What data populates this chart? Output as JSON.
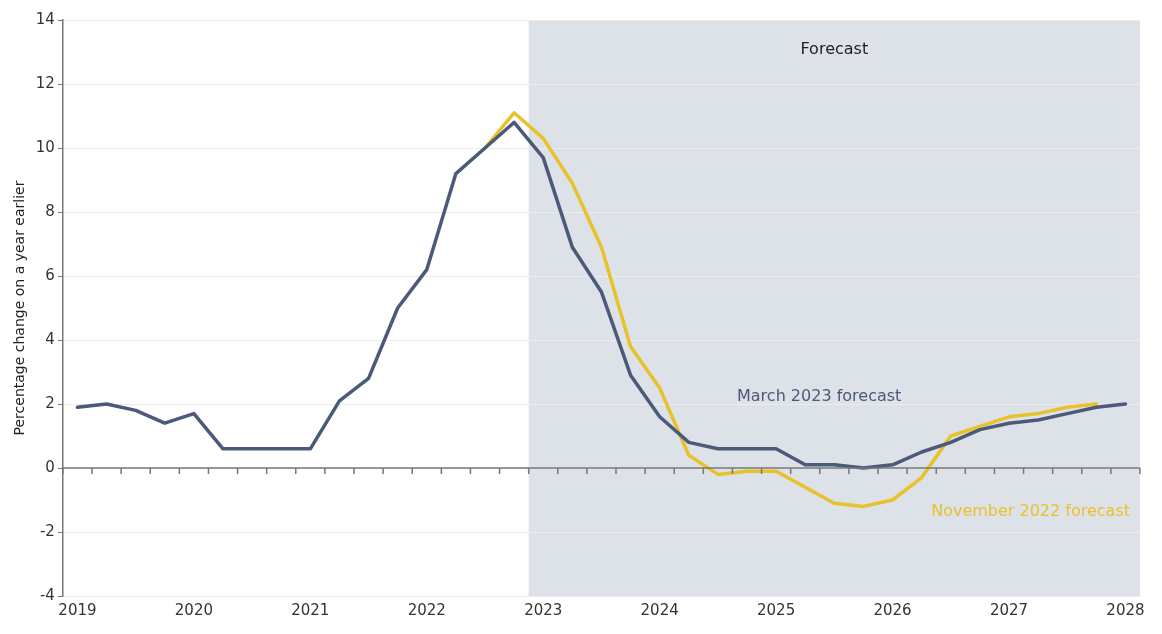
{
  "chart_data": {
    "type": "line",
    "ylabel": "Percentage change on a year earlier",
    "x": [
      2019,
      2019.25,
      2019.5,
      2019.75,
      2020,
      2020.25,
      2020.5,
      2020.75,
      2021,
      2021.25,
      2021.5,
      2021.75,
      2022,
      2022.25,
      2022.5,
      2022.75,
      2023,
      2023.25,
      2023.5,
      2023.75,
      2024,
      2024.25,
      2024.5,
      2024.75,
      2025,
      2025.25,
      2025.5,
      2025.75,
      2026,
      2026.25,
      2026.5,
      2026.75,
      2027,
      2027.25,
      2027.5,
      2027.75,
      2028
    ],
    "series": [
      {
        "name": "November 2022 forecast",
        "color": "#e8c22a",
        "values": [
          null,
          null,
          null,
          null,
          null,
          null,
          null,
          null,
          null,
          null,
          null,
          null,
          null,
          null,
          10.0,
          11.1,
          10.3,
          8.9,
          6.9,
          3.8,
          2.5,
          0.4,
          -0.2,
          -0.1,
          -0.1,
          -0.6,
          -1.1,
          -1.2,
          -1.0,
          -0.3,
          1.0,
          1.3,
          1.6,
          1.7,
          1.9,
          2.0,
          null
        ]
      },
      {
        "name": "March 2023 forecast",
        "color": "#4a5a78",
        "values": [
          1.9,
          2.0,
          1.8,
          1.4,
          1.7,
          0.6,
          0.6,
          0.6,
          0.6,
          2.1,
          2.8,
          5.0,
          6.2,
          9.2,
          10.0,
          10.8,
          9.7,
          6.9,
          5.5,
          2.9,
          1.6,
          0.8,
          0.6,
          0.6,
          0.6,
          0.1,
          0.1,
          0.0,
          0.1,
          0.5,
          0.8,
          1.2,
          1.4,
          1.5,
          1.7,
          1.9,
          2.0
        ]
      }
    ],
    "xlim": [
      2018.875,
      2028.125
    ],
    "xticks": [
      2019,
      2020,
      2021,
      2022,
      2023,
      2024,
      2025,
      2026,
      2027,
      2028,
      {
        "value": 2018.875,
        "label": null
      },
      {
        "value": 2019.125,
        "label": null
      },
      {
        "value": 2019.375,
        "label": null
      },
      {
        "value": 2019.625,
        "label": null
      },
      {
        "value": 2019.875,
        "label": null
      },
      {
        "value": 2020.125,
        "label": null
      },
      {
        "value": 2020.375,
        "label": null
      },
      {
        "value": 2020.625,
        "label": null
      },
      {
        "value": 2020.875,
        "label": null
      },
      {
        "value": 2021.125,
        "label": null
      },
      {
        "value": 2021.375,
        "label": null
      },
      {
        "value": 2021.625,
        "label": null
      },
      {
        "value": 2021.875,
        "label": null
      },
      {
        "value": 2022.125,
        "label": null
      },
      {
        "value": 2022.375,
        "label": null
      },
      {
        "value": 2022.625,
        "label": null
      },
      {
        "value": 2022.875,
        "label": null
      },
      {
        "value": 2023.125,
        "label": null
      },
      {
        "value": 2023.375,
        "label": null
      },
      {
        "value": 2023.625,
        "label": null
      },
      {
        "value": 2023.875,
        "label": null
      },
      {
        "value": 2024.125,
        "label": null
      },
      {
        "value": 2024.375,
        "label": null
      },
      {
        "value": 2024.625,
        "label": null
      },
      {
        "value": 2024.875,
        "label": null
      },
      {
        "value": 2025.125,
        "label": null
      },
      {
        "value": 2025.375,
        "label": null
      },
      {
        "value": 2025.625,
        "label": null
      },
      {
        "value": 2025.875,
        "label": null
      },
      {
        "value": 2026.125,
        "label": null
      },
      {
        "value": 2026.375,
        "label": null
      },
      {
        "value": 2026.625,
        "label": null
      },
      {
        "value": 2026.875,
        "label": null
      },
      {
        "value": 2027.125,
        "label": null
      },
      {
        "value": 2027.375,
        "label": null
      },
      {
        "value": 2027.625,
        "label": null
      },
      {
        "value": 2027.875,
        "label": null
      },
      {
        "value": 2028.125,
        "label": null
      }
    ],
    "ylim": [
      -4,
      14
    ],
    "yticks": [
      -4,
      -2,
      0,
      2,
      4,
      6,
      8,
      10,
      12,
      14
    ],
    "bands": [
      {
        "axis": "x",
        "from": 2022.875,
        "to": 2028.125,
        "label": "Forecast",
        "color": "#dde1e8"
      }
    ],
    "grid": "y",
    "legend": false,
    "marker": "none",
    "line_style": "solid"
  }
}
